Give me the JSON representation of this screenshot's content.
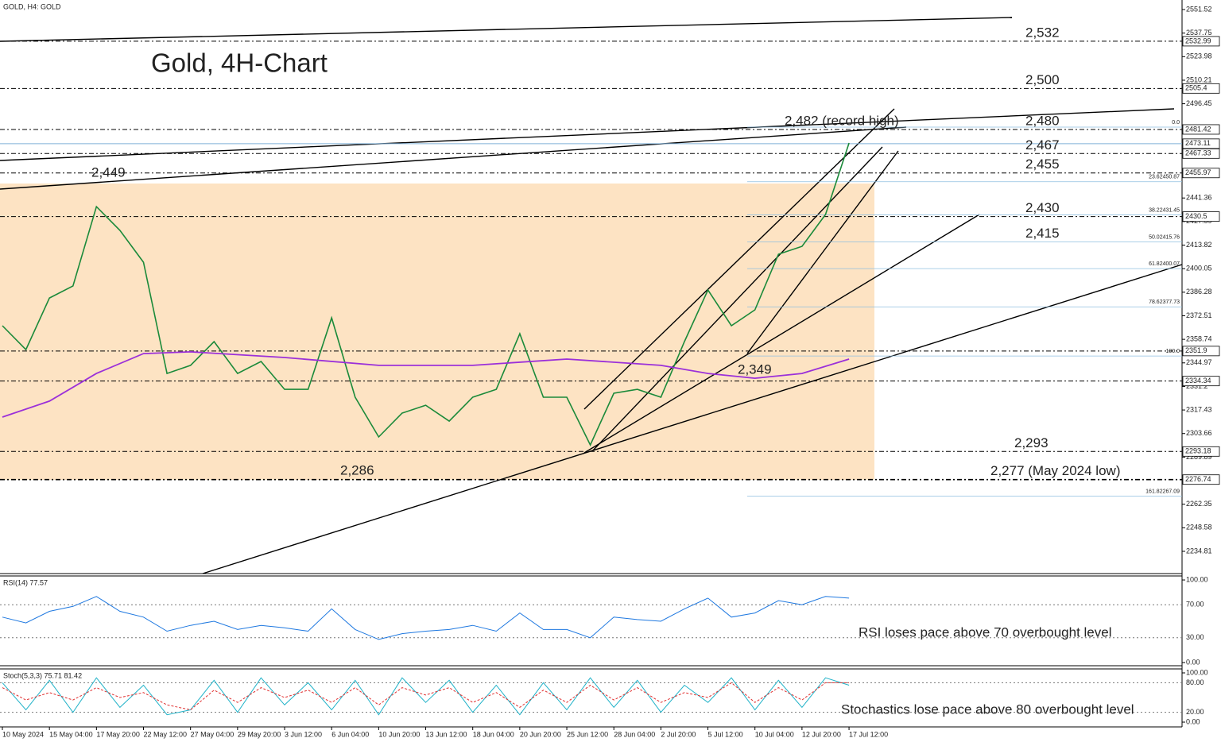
{
  "header": {
    "symbol": "GOLD, H4:  GOLD",
    "title": "Gold, 4H-Chart"
  },
  "chart_data": {
    "type": "line",
    "xlim": [
      -0.05,
      25.07
    ],
    "xticks": [
      {
        "value": 0,
        "label": "10 May 2024"
      },
      {
        "value": 1,
        "label": "15 May 04:00"
      },
      {
        "value": 2,
        "label": "17 May 20:00"
      },
      {
        "value": 3,
        "label": "22 May 12:00"
      },
      {
        "value": 4,
        "label": "27 May 04:00"
      },
      {
        "value": 5,
        "label": "29 May 20:00"
      },
      {
        "value": 6,
        "label": "3 Jun 12:00"
      },
      {
        "value": 7,
        "label": "6 Jun 04:00"
      },
      {
        "value": 8,
        "label": "10 Jun 20:00"
      },
      {
        "value": 9,
        "label": "13 Jun 12:00"
      },
      {
        "value": 10,
        "label": "18 Jun 04:00"
      },
      {
        "value": 11,
        "label": "20 Jun 20:00"
      },
      {
        "value": 12,
        "label": "25 Jun 12:00"
      },
      {
        "value": 13,
        "label": "28 Jun 04:00"
      },
      {
        "value": 14,
        "label": "2 Jul 20:00"
      },
      {
        "value": 15,
        "label": "5 Jul 12:00"
      },
      {
        "value": 16,
        "label": "10 Jul 04:00"
      },
      {
        "value": 17,
        "label": "12 Jul 20:00"
      },
      {
        "value": 18,
        "label": "17 Jul 12:00"
      }
    ],
    "ylim": [
      2221.8,
      2557.1
    ],
    "yticks": [
      2551.52,
      2537.75,
      2523.98,
      2510.21,
      2496.45,
      2441.36,
      2427.59,
      2413.82,
      2400.05,
      2386.28,
      2372.51,
      2358.74,
      2344.97,
      2331.2,
      2317.43,
      2303.66,
      2289.89,
      2262.35,
      2248.58,
      2234.81
    ],
    "series": [
      {
        "color": "#1b8a3a",
        "x": [
          0,
          0.5,
          1,
          1.5,
          2,
          2.5,
          3,
          3.5,
          4,
          4.5,
          5,
          5.5,
          6,
          6.5,
          7,
          7.5,
          8,
          8.5,
          9,
          9.5,
          10,
          10.5,
          11,
          11.5,
          12,
          12.5,
          13,
          13.5,
          14,
          14.5,
          15,
          15.5,
          16,
          16.5,
          17,
          17.5,
          18
        ],
        "values": [
          2366.7,
          2352.7,
          2382.9,
          2389.9,
          2436.3,
          2422.4,
          2403.8,
          2338.8,
          2343.5,
          2357.4,
          2338.8,
          2345.8,
          2329.5,
          2329.5,
          2371.3,
          2324.9,
          2301.7,
          2315.6,
          2320.2,
          2310.9,
          2324.9,
          2329.5,
          2362.0,
          2324.9,
          2324.9,
          2297.0,
          2327.2,
          2329.5,
          2324.9,
          2357.4,
          2387.6,
          2366.7,
          2376.0,
          2408.5,
          2413.1,
          2431.7,
          2473.5
        ]
      },
      {
        "color": "#9b30d9",
        "x": [
          0,
          1,
          2,
          3,
          4,
          6,
          8,
          10,
          12,
          14,
          15,
          16,
          17,
          18
        ],
        "values": [
          2313.3,
          2322.6,
          2338.8,
          2350.4,
          2351.4,
          2348.1,
          2343.5,
          2343.5,
          2347.2,
          2343.5,
          2338.8,
          2336.0,
          2338.8,
          2347.2
        ]
      }
    ],
    "levels": [
      {
        "value": 2532.99,
        "annotation": "2,532",
        "color": "#ff0000"
      },
      {
        "value": 2505.4,
        "annotation": "2,500",
        "color": "#ff0000"
      },
      {
        "value": 2481.42,
        "annotation": "2,480",
        "color": "#ff0000"
      },
      {
        "value": 2473.11
      },
      {
        "value": 2467.33,
        "annotation": "2,467",
        "color": "#2e8b22"
      },
      {
        "value": 2455.97,
        "annotation": "2,455",
        "color": "#2e8b22"
      },
      {
        "value": 2430.5,
        "annotation": "2,430",
        "color": "#2e8b22"
      },
      {
        "value": 2351.9
      },
      {
        "value": 2334.34
      },
      {
        "value": 2293.18,
        "annotation": "2,293",
        "color": "#2e8b22"
      },
      {
        "value": 2276.74,
        "annotation": "2,277 (May 2024 low)",
        "color": "#2e8b22"
      }
    ],
    "fib": [
      {
        "level": "0.0",
        "value": 2482.8
      },
      {
        "level": "23.6",
        "price": 2450.87
      },
      {
        "level": "38.2",
        "price": 2431.45
      },
      {
        "level": "50.0",
        "price": 2415.76,
        "annotation": "2,415",
        "color": "#2e8b22"
      },
      {
        "level": "61.8",
        "price": 2400.07
      },
      {
        "level": "78.6",
        "price": 2377.73
      },
      {
        "level": "100.0",
        "value": 2349.0
      },
      {
        "level": "161.8",
        "price": 2267.09
      }
    ],
    "annotations": [
      "2,482 (record high)",
      "2,449",
      "2,286",
      "2,349"
    ],
    "rsi": {
      "title": "RSI(14) 77.57",
      "note": "RSI loses pace above 70 overbought level",
      "color": "#1e78e0",
      "ylim": [
        -3.88,
        104.85
      ],
      "yticks": [
        {
          "value": 100,
          "label": "100.00"
        },
        {
          "value": 70,
          "label": "70.00"
        },
        {
          "value": 30,
          "label": "30.00"
        },
        {
          "value": 0,
          "label": "0.00"
        }
      ],
      "x": [
        0,
        0.5,
        1,
        1.5,
        2,
        2.5,
        3,
        3.5,
        4,
        4.5,
        5,
        5.5,
        6,
        6.5,
        7,
        7.5,
        8,
        8.5,
        9,
        9.5,
        10,
        10.5,
        11,
        11.5,
        12,
        12.5,
        13,
        13.5,
        14,
        14.5,
        15,
        15.5,
        16,
        16.5,
        17,
        17.5,
        18
      ],
      "values": [
        55,
        48,
        62,
        68,
        80,
        62,
        55,
        38,
        45,
        50,
        40,
        45,
        42,
        38,
        65,
        40,
        28,
        35,
        38,
        40,
        45,
        38,
        60,
        40,
        40,
        30,
        55,
        52,
        50,
        65,
        78,
        55,
        60,
        75,
        70,
        80,
        78
      ]
    },
    "stoch": {
      "title": "Stoch(5,3,3) 75.71 81.42",
      "note": "Stochastics lose pace above 80 overbought level",
      "ylim": [
        -9.68,
        108.06
      ],
      "yticks": [
        {
          "value": 100,
          "label": "100.00"
        },
        {
          "value": 80,
          "label": "80.00"
        },
        {
          "value": 20,
          "label": "20.00"
        },
        {
          "value": 0,
          "label": "0.00"
        }
      ],
      "x": [
        0,
        0.5,
        1,
        1.5,
        2,
        2.5,
        3,
        3.5,
        4,
        4.5,
        5,
        5.5,
        6,
        6.5,
        7,
        7.5,
        8,
        8.5,
        9,
        9.5,
        10,
        10.5,
        11,
        11.5,
        12,
        12.5,
        13,
        13.5,
        14,
        14.5,
        15,
        15.5,
        16,
        16.5,
        17,
        17.5,
        18
      ],
      "series": [
        {
          "color": "#20b2c8",
          "values": [
            80,
            25,
            85,
            20,
            90,
            30,
            75,
            15,
            25,
            85,
            20,
            90,
            35,
            80,
            25,
            85,
            15,
            90,
            40,
            85,
            20,
            75,
            15,
            80,
            25,
            90,
            30,
            85,
            20,
            75,
            40,
            90,
            25,
            85,
            30,
            90,
            75
          ]
        },
        {
          "color": "#e03030",
          "dashed": true,
          "values": [
            70,
            45,
            60,
            45,
            70,
            50,
            60,
            35,
            25,
            65,
            40,
            70,
            50,
            65,
            40,
            70,
            35,
            70,
            55,
            70,
            40,
            60,
            30,
            65,
            40,
            75,
            45,
            70,
            40,
            60,
            50,
            80,
            40,
            70,
            45,
            80,
            80
          ]
        }
      ]
    }
  }
}
